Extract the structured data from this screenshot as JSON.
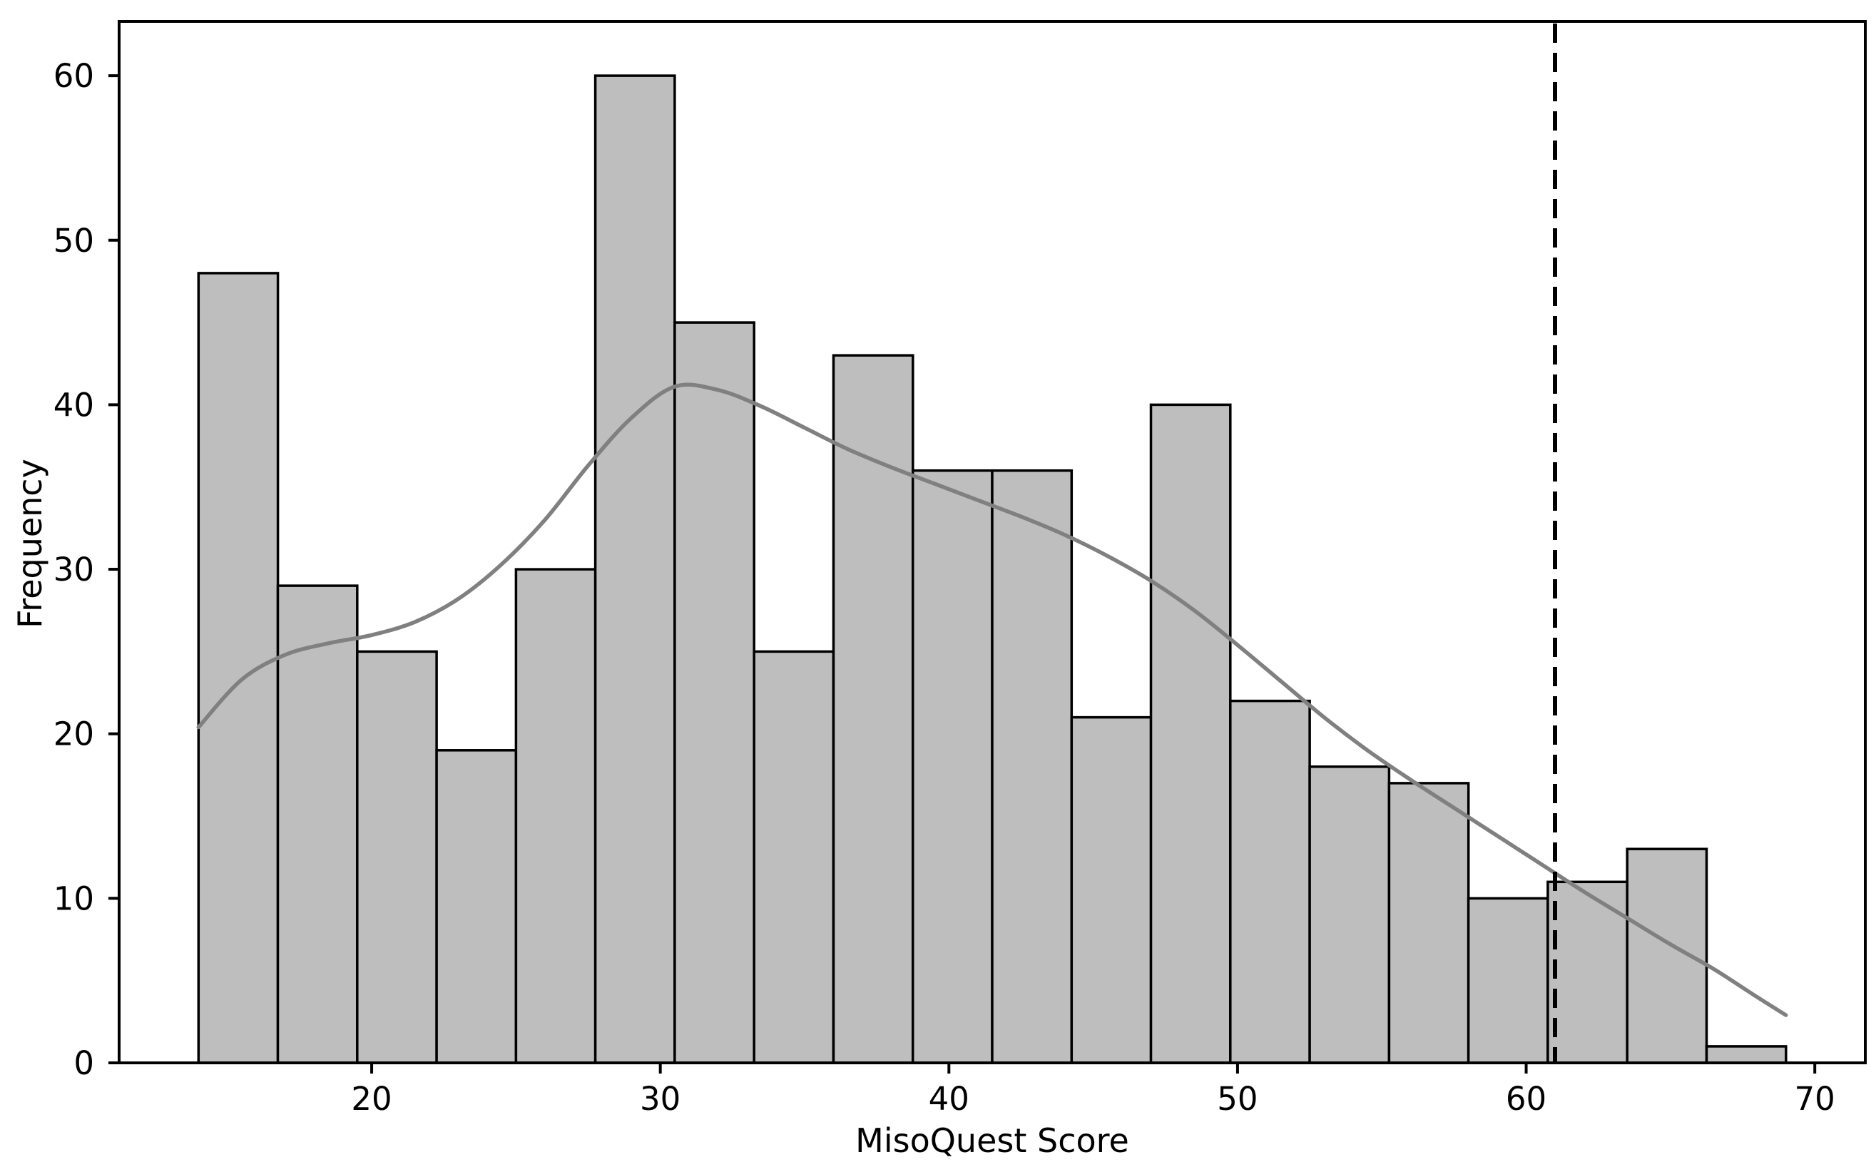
{
  "figure": {
    "background": "#ffffff",
    "title": ""
  },
  "chart_data": {
    "type": "bar",
    "subtype": "histogram-with-kde",
    "title": "",
    "xlabel": "MisoQuest Score",
    "ylabel": "Frequency",
    "xlim": [
      11.25,
      71.75
    ],
    "ylim": [
      0,
      63.3
    ],
    "xticks": [
      20,
      30,
      40,
      50,
      60,
      70
    ],
    "yticks": [
      0,
      10,
      20,
      30,
      40,
      50,
      60
    ],
    "grid": false,
    "legend": "none",
    "bin_width": 2.75,
    "bin_edges": [
      14.0,
      16.75,
      19.5,
      22.25,
      25.0,
      27.75,
      30.5,
      33.25,
      36.0,
      38.75,
      41.5,
      44.25,
      47.0,
      49.75,
      52.5,
      55.25,
      58.0,
      60.75,
      63.5,
      66.25,
      69.0
    ],
    "frequencies": [
      48,
      29,
      25,
      19,
      30,
      60,
      45,
      25,
      43,
      36,
      36,
      21,
      40,
      22,
      18,
      17,
      10,
      11,
      13,
      1
    ],
    "kde_curve": {
      "x": [
        14,
        15.5,
        17,
        18.5,
        20,
        21.5,
        23,
        24.5,
        26,
        27.5,
        29,
        30.5,
        32,
        33.5,
        35,
        36.5,
        38,
        39.5,
        41,
        42.5,
        44,
        45.5,
        47,
        48.5,
        50,
        51.5,
        53,
        54.5,
        56,
        57.5,
        59,
        60.5,
        62,
        63.5,
        65,
        66.5,
        68,
        69
      ],
      "y": [
        20.4,
        23.3,
        24.8,
        25.5,
        26.0,
        26.8,
        28.2,
        30.3,
        33.0,
        36.3,
        39.2,
        41.1,
        40.9,
        39.9,
        38.6,
        37.3,
        36.2,
        35.2,
        34.2,
        33.2,
        32.1,
        30.8,
        29.3,
        27.5,
        25.4,
        23.2,
        21.0,
        19.0,
        17.2,
        15.5,
        13.8,
        12.1,
        10.4,
        8.8,
        7.2,
        5.7,
        4.0,
        2.9
      ]
    },
    "cutoff_line": {
      "x": 61,
      "orientation": "vertical",
      "style": "dashed",
      "color": "#000000"
    },
    "colors": {
      "bar_fill": "#bebebe",
      "bar_edge": "#000000",
      "kde_line": "#808080",
      "axis": "#000000",
      "text": "#000000"
    }
  }
}
